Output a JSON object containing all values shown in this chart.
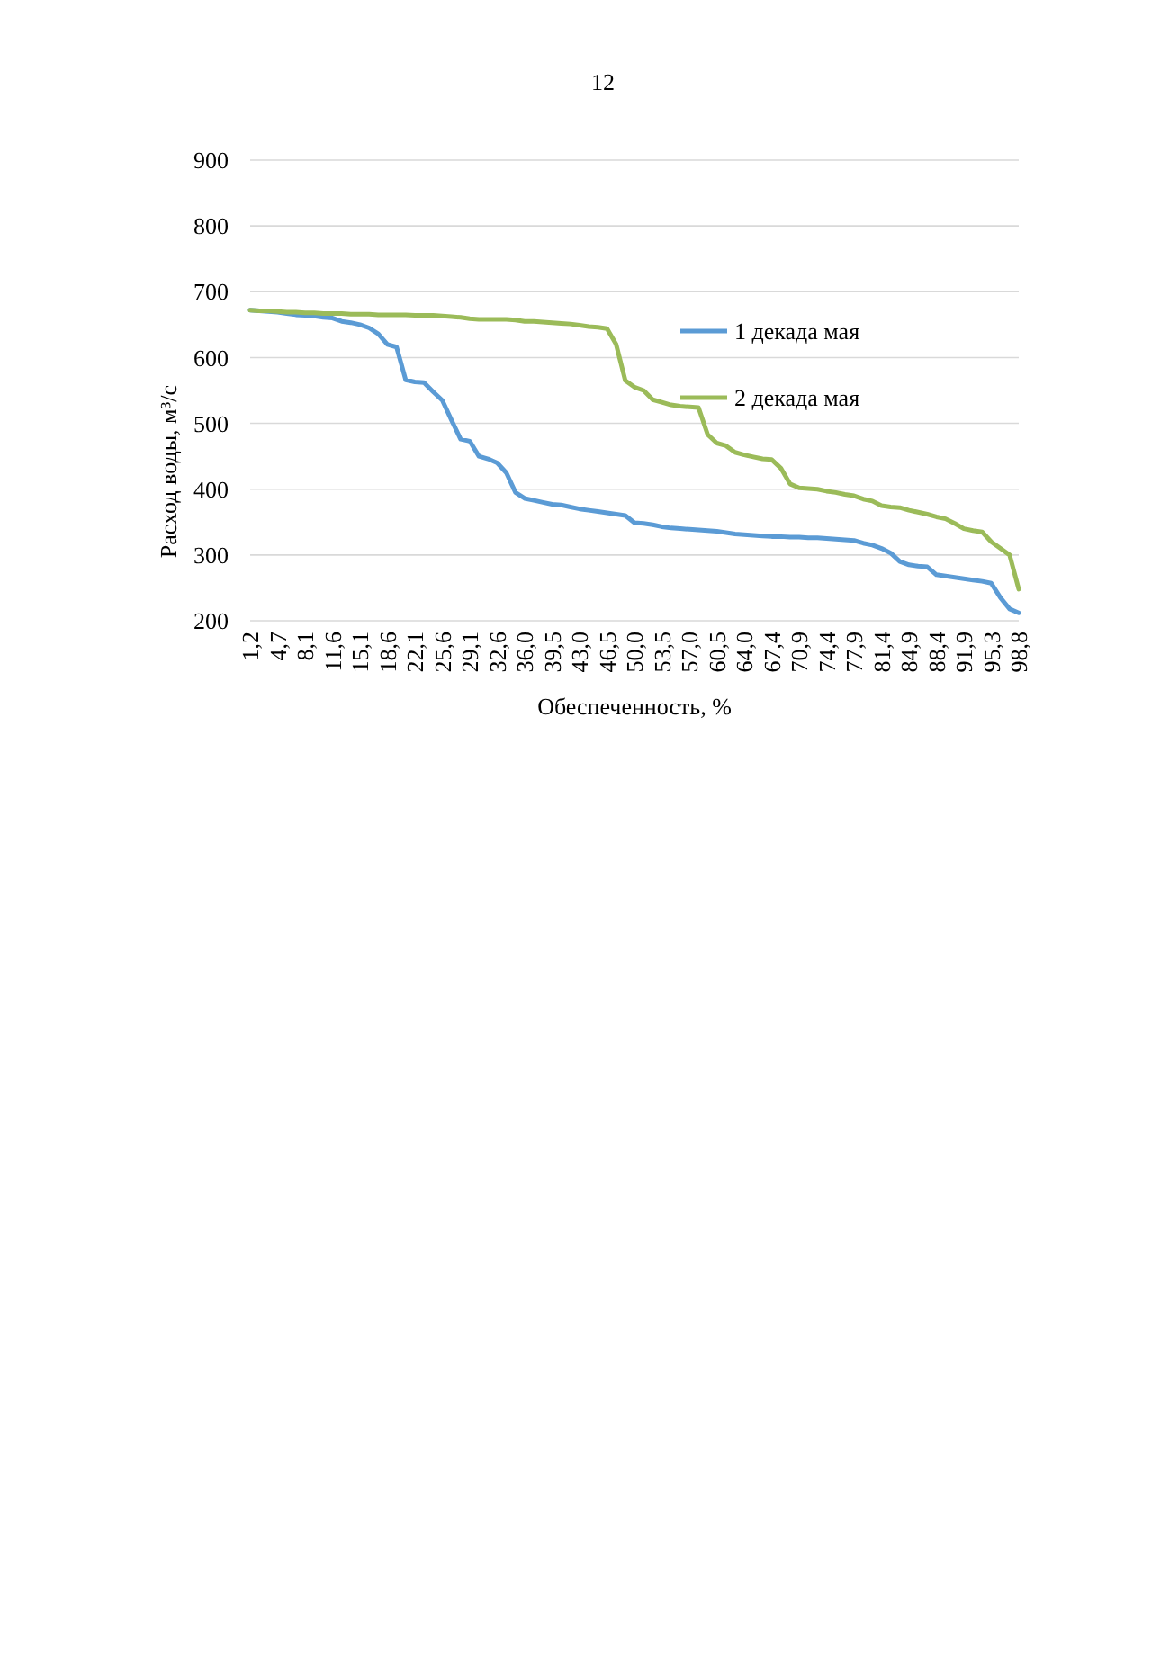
{
  "chart_data": {
    "type": "line",
    "ylabel": "Расход воды, м³/с",
    "xlabel": "Обеспеченность, %",
    "annotations": [
      "12"
    ],
    "categories": [
      "1,2",
      null,
      null,
      "4,7",
      null,
      null,
      "8,1",
      null,
      null,
      "11,6",
      null,
      null,
      "15,1",
      null,
      null,
      "18,6",
      null,
      null,
      "22,1",
      null,
      null,
      "25,6",
      null,
      null,
      "29,1",
      null,
      null,
      "32,6",
      null,
      null,
      "36,0",
      null,
      null,
      "39,5",
      null,
      null,
      "43,0",
      null,
      null,
      "46,5",
      null,
      null,
      "50,0",
      null,
      null,
      "53,5",
      null,
      null,
      "57,0",
      null,
      null,
      "60,5",
      null,
      null,
      "64,0",
      null,
      null,
      "67,4",
      null,
      null,
      "70,9",
      null,
      null,
      "74,4",
      null,
      null,
      "77,9",
      null,
      null,
      "81,4",
      null,
      null,
      "84,9",
      null,
      null,
      "88,4",
      null,
      null,
      "91,9",
      null,
      null,
      "95,3",
      null,
      null,
      "98,8"
    ],
    "series": [
      {
        "name": "1 декада мая",
        "color": "#5b9bd5",
        "values": [
          672,
          671,
          670,
          669,
          667,
          665,
          664,
          663,
          661,
          660,
          655,
          653,
          650,
          645,
          636,
          620,
          616,
          566,
          563,
          562,
          548,
          535,
          505,
          476,
          473,
          450,
          446,
          440,
          425,
          395,
          386,
          383,
          380,
          377,
          376,
          373,
          370,
          368,
          366,
          364,
          362,
          360,
          349,
          348,
          346,
          343,
          341,
          340,
          339,
          338,
          337,
          336,
          334,
          332,
          331,
          330,
          329,
          328,
          328,
          327,
          327,
          326,
          326,
          325,
          324,
          323,
          322,
          318,
          315,
          310,
          303,
          290,
          285,
          283,
          282,
          270,
          268,
          266,
          264,
          262,
          260,
          257,
          235,
          218,
          212
        ]
      },
      {
        "name": "2 декада мая",
        "color": "#9bbb59",
        "values": [
          672,
          671,
          671,
          670,
          669,
          669,
          668,
          668,
          667,
          667,
          667,
          666,
          666,
          666,
          665,
          665,
          665,
          665,
          664,
          664,
          664,
          663,
          662,
          661,
          659,
          658,
          658,
          658,
          658,
          657,
          655,
          655,
          654,
          653,
          652,
          651,
          649,
          647,
          646,
          644,
          620,
          565,
          555,
          550,
          536,
          532,
          528,
          526,
          525,
          524,
          483,
          470,
          466,
          456,
          452,
          449,
          446,
          445,
          432,
          408,
          402,
          401,
          400,
          397,
          395,
          392,
          390,
          385,
          382,
          375,
          373,
          372,
          368,
          365,
          362,
          358,
          355,
          348,
          340,
          337,
          335,
          320,
          310,
          300,
          248
        ]
      }
    ],
    "ylim": [
      200,
      900
    ],
    "yticks": [
      200,
      300,
      400,
      500,
      600,
      700,
      800,
      900
    ],
    "grid": "y",
    "legend": "right"
  }
}
